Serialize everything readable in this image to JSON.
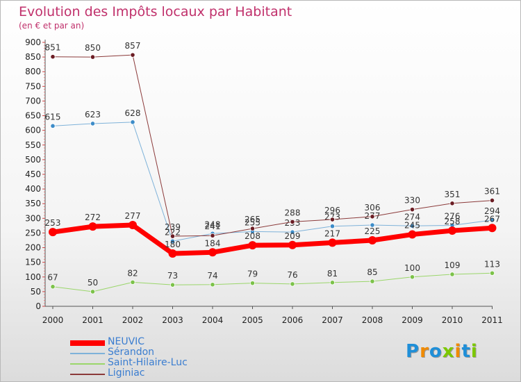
{
  "chart_data": {
    "type": "line",
    "title": "Evolution des Impôts locaux par Habitant",
    "subtitle": "(en € et par an)",
    "categories": [
      "2000",
      "2001",
      "2002",
      "2003",
      "2004",
      "2005",
      "2006",
      "2007",
      "2008",
      "2009",
      "2010",
      "2011"
    ],
    "ylim": [
      0,
      900
    ],
    "yticks": [
      0,
      50,
      100,
      150,
      200,
      250,
      300,
      350,
      400,
      450,
      500,
      550,
      600,
      650,
      700,
      750,
      800,
      850,
      900
    ],
    "grid": false,
    "series": [
      {
        "name": "Saint-Hilaire-Luc",
        "color": "#9ad66a",
        "marker": "#7cc24a",
        "width": 1,
        "values": [
          67,
          50,
          82,
          73,
          74,
          79,
          76,
          81,
          85,
          100,
          109,
          113
        ]
      },
      {
        "name": "Sérandon",
        "color": "#7eb2d9",
        "marker": "#3d8cc8",
        "width": 1,
        "values": [
          615,
          623,
          628,
          222,
          248,
          255,
          253,
          273,
          277,
          274,
          276,
          294
        ]
      },
      {
        "name": "Liginiac",
        "color": "#8b3a3a",
        "marker": "#6b1d24",
        "width": 1,
        "values": [
          851,
          850,
          857,
          239,
          241,
          265,
          288,
          296,
          306,
          330,
          351,
          361
        ]
      },
      {
        "name": "NEUVIC",
        "color": "#ff0000",
        "marker": "#ff0000",
        "width": 7,
        "values": [
          253,
          272,
          277,
          180,
          184,
          208,
          209,
          217,
          225,
          245,
          258,
          267
        ]
      }
    ],
    "legend_order": [
      "NEUVIC",
      "Sérandon",
      "Saint-Hilaire-Luc",
      "Liginiac"
    ]
  },
  "logo": {
    "text": "Proxiti",
    "colors": [
      "#1f8fd8",
      "#f08a00",
      "#1f8fd8",
      "#7cc800",
      "#f08a00",
      "#1f8fd8",
      "#7cc800"
    ]
  }
}
